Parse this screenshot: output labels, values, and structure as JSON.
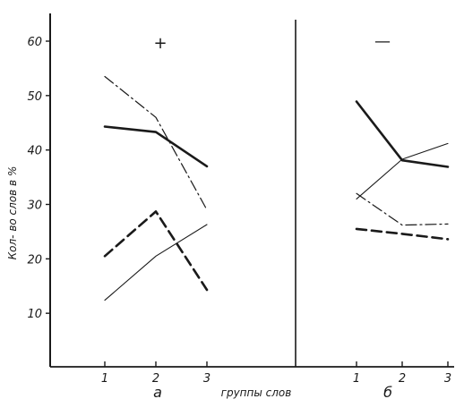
{
  "chart_data": {
    "type": "line",
    "ylabel": "Кол- во слов в %",
    "xlabel": "группы слов",
    "ylim": [
      0,
      60
    ],
    "y_ticks": [
      "10",
      "20",
      "30",
      "40",
      "50",
      "60"
    ],
    "grid": false,
    "legend": "none",
    "panels": [
      {
        "label": "а",
        "sign": "+",
        "categories": [
          "1",
          "2",
          "3"
        ],
        "series": [
          {
            "style": "solid-thick",
            "values": [
              44.3,
              43.3,
              37.0
            ]
          },
          {
            "style": "dash-dot",
            "values": [
              53.5,
              46.0,
              29.0
            ]
          },
          {
            "style": "dashed-thick",
            "values": [
              20.5,
              28.7,
              14.3
            ]
          },
          {
            "style": "solid-thin",
            "values": [
              12.4,
              20.5,
              26.3
            ]
          }
        ]
      },
      {
        "label": "б",
        "sign": "—",
        "categories": [
          "1",
          "2",
          "3"
        ],
        "series": [
          {
            "style": "solid-thick",
            "values": [
              48.9,
              38.1,
              36.9
            ]
          },
          {
            "style": "solid-thin",
            "values": [
              31.0,
              38.3,
              41.2
            ]
          },
          {
            "style": "dash-dot",
            "values": [
              32.0,
              26.2,
              26.4
            ]
          },
          {
            "style": "dashed-thick",
            "values": [
              25.5,
              24.6,
              23.6
            ]
          }
        ]
      }
    ]
  },
  "colors": {
    "ink": "#1a1a1a",
    "paper": "#ffffff"
  }
}
